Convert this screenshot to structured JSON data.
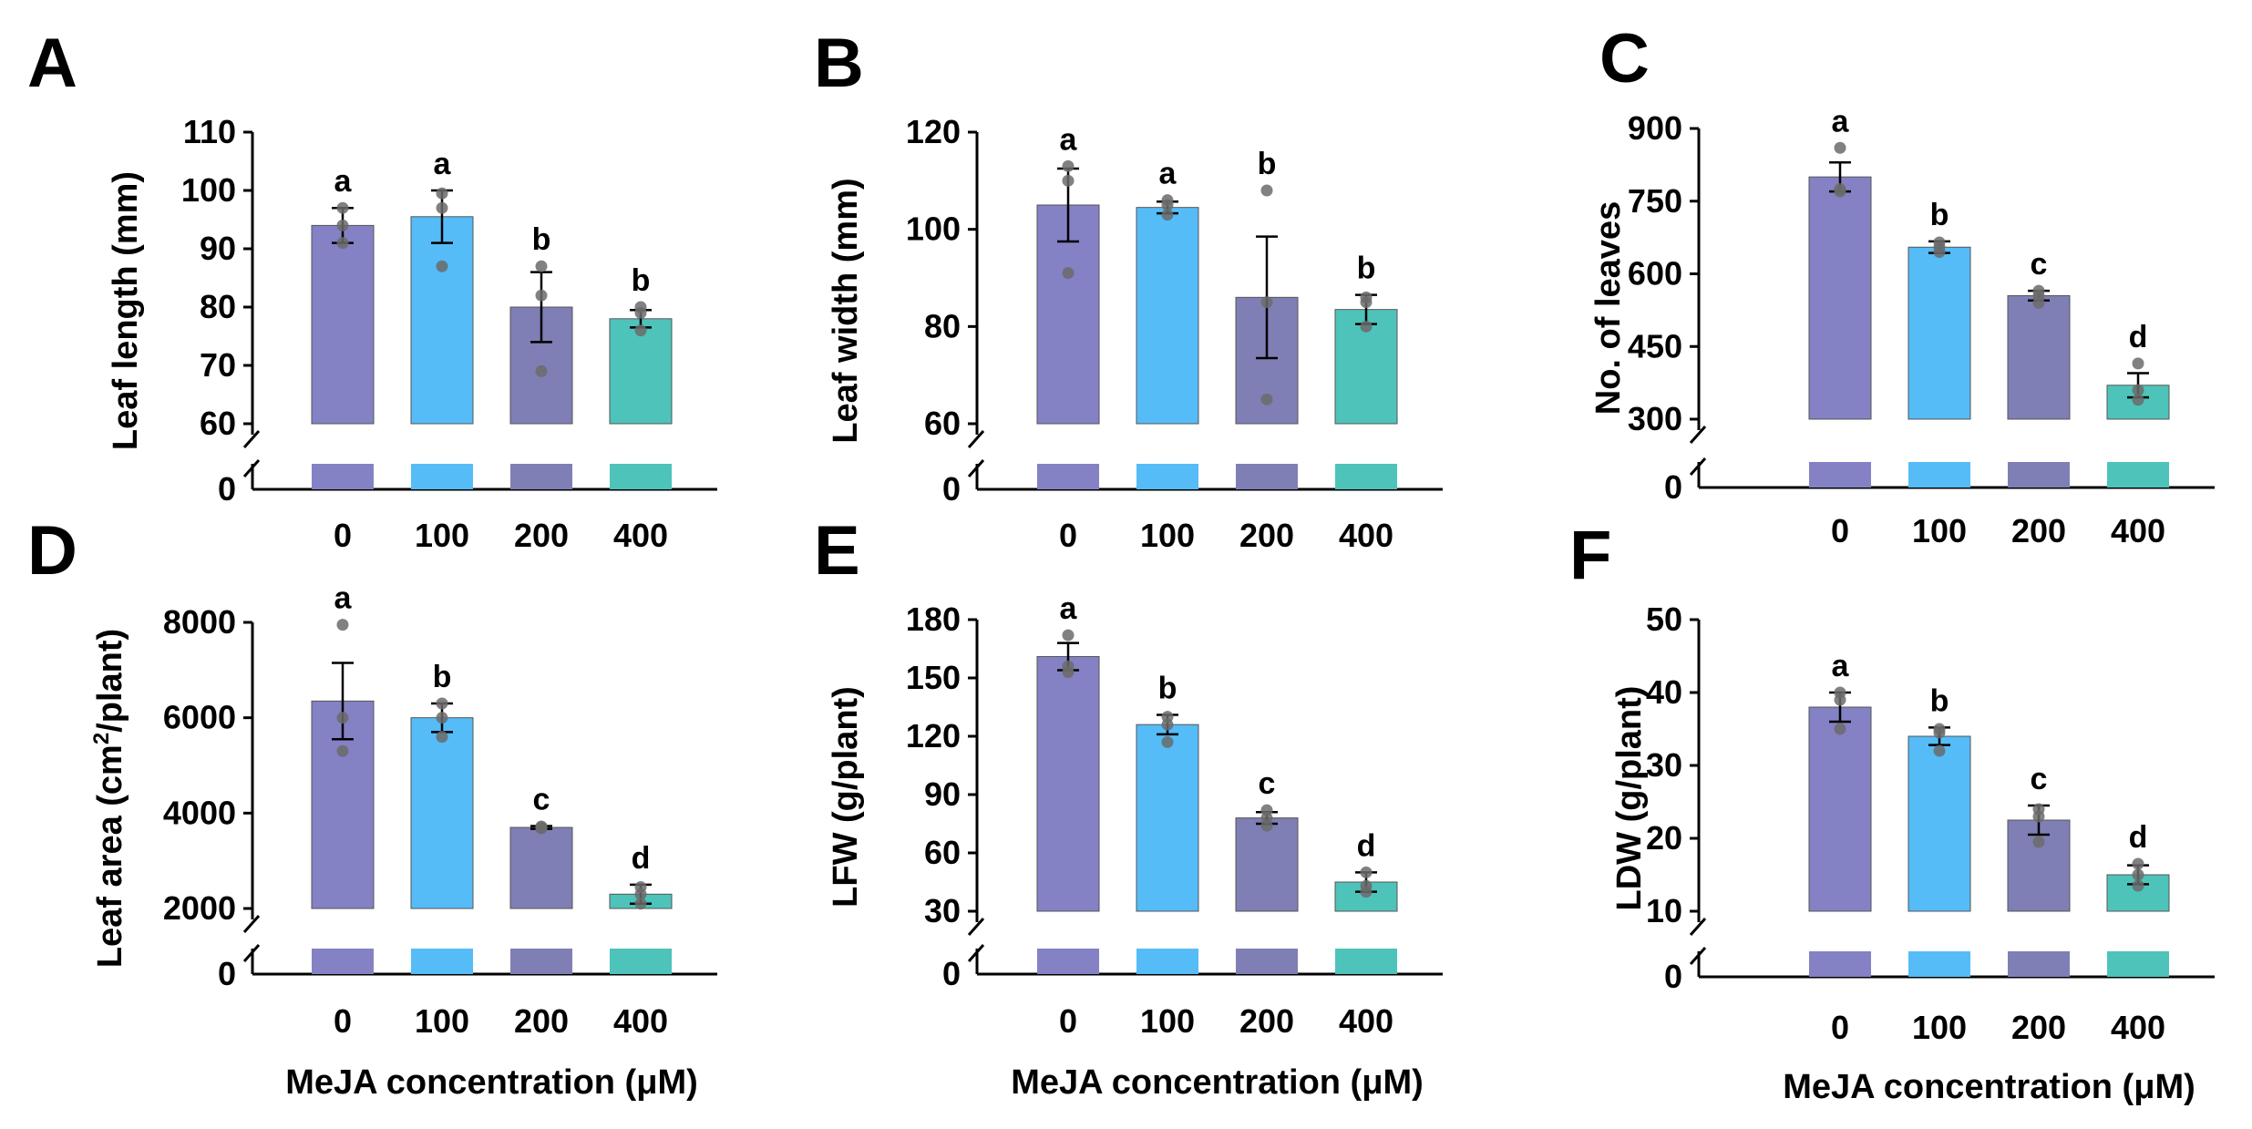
{
  "figure": {
    "x_common_label": "MeJA concentration (μM)",
    "colors": [
      "#8481C4",
      "#55BCF7",
      "#7F7FB5",
      "#4EC3BA"
    ],
    "points_color": "#6b6b6b"
  },
  "chart_data": [
    {
      "panel": "A",
      "type": "bar",
      "categories": [
        "0",
        "100",
        "200",
        "400"
      ],
      "ylabel": "Leaf length (mm)",
      "ylim": [
        60,
        110
      ],
      "yticks": [
        60,
        70,
        80,
        90,
        100,
        110
      ],
      "axis_break": true,
      "zero_label": "0",
      "values": [
        94,
        95.5,
        80,
        78
      ],
      "errors": [
        3,
        4.5,
        6,
        1.5
      ],
      "letters": [
        "a",
        "a",
        "b",
        "b"
      ],
      "points": [
        [
          91,
          94,
          97
        ],
        [
          87,
          97,
          99.5
        ],
        [
          69,
          82,
          87
        ],
        [
          76,
          79,
          80
        ]
      ]
    },
    {
      "panel": "B",
      "type": "bar",
      "categories": [
        "0",
        "100",
        "200",
        "400"
      ],
      "ylabel": "Leaf width (mm)",
      "ylim": [
        60,
        120
      ],
      "yticks": [
        60,
        80,
        100,
        120
      ],
      "axis_break": true,
      "zero_label": "0",
      "values": [
        105,
        104.5,
        86,
        83.5
      ],
      "errors": [
        7.5,
        1.2,
        12.5,
        3
      ],
      "letters": [
        "a",
        "a",
        "b",
        "b"
      ],
      "points": [
        [
          91,
          110,
          113
        ],
        [
          103,
          105,
          106
        ],
        [
          65,
          85,
          108
        ],
        [
          80,
          85,
          86
        ]
      ]
    },
    {
      "panel": "C",
      "type": "bar",
      "categories": [
        "0",
        "100",
        "200",
        "400"
      ],
      "ylabel": "No. of leaves",
      "ylim": [
        300,
        900
      ],
      "yticks": [
        300,
        450,
        600,
        750,
        900
      ],
      "axis_break": true,
      "zero_label": "0",
      "values": [
        800,
        655,
        555,
        370
      ],
      "errors": [
        30,
        12,
        10,
        25
      ],
      "letters": [
        "a",
        "b",
        "c",
        "d"
      ],
      "points": [
        [
          770,
          775,
          860
        ],
        [
          645,
          655,
          665
        ],
        [
          540,
          555,
          565
        ],
        [
          340,
          360,
          415
        ]
      ]
    },
    {
      "panel": "D",
      "type": "bar",
      "categories": [
        "0",
        "100",
        "200",
        "400"
      ],
      "ylabel": "Leaf area (cm2/plant)",
      "ylabel_main": "Leaf area (cm",
      "ylabel_sup": "2",
      "ylabel_tail": "/plant)",
      "ylim": [
        2000,
        8000
      ],
      "yticks": [
        2000,
        4000,
        6000,
        8000
      ],
      "axis_break": true,
      "zero_label": "0",
      "values": [
        6350,
        6000,
        3700,
        2300
      ],
      "errors": [
        800,
        300,
        30,
        200
      ],
      "letters": [
        "a",
        "b",
        "c",
        "d"
      ],
      "points": [
        [
          5300,
          6000,
          7950
        ],
        [
          5600,
          6000,
          6300
        ],
        [
          3680,
          3700,
          3720
        ],
        [
          2100,
          2300,
          2450
        ]
      ]
    },
    {
      "panel": "E",
      "type": "bar",
      "categories": [
        "0",
        "100",
        "200",
        "400"
      ],
      "ylabel": "LFW (g/plant)",
      "ylim": [
        30,
        180
      ],
      "yticks": [
        30,
        60,
        90,
        120,
        150,
        180
      ],
      "axis_break": true,
      "zero_label": "0",
      "values": [
        161,
        126,
        78,
        45
      ],
      "errors": [
        7,
        5,
        3,
        5
      ],
      "letters": [
        "a",
        "b",
        "c",
        "d"
      ],
      "points": [
        [
          153,
          156,
          172
        ],
        [
          117,
          126,
          130
        ],
        [
          74,
          78,
          82
        ],
        [
          40,
          43,
          50
        ]
      ]
    },
    {
      "panel": "F",
      "type": "bar",
      "categories": [
        "0",
        "100",
        "200",
        "400"
      ],
      "ylabel": "LDW (g/plant)",
      "ylim": [
        10,
        50
      ],
      "yticks": [
        10,
        20,
        30,
        40,
        50
      ],
      "axis_break": true,
      "zero_label": "0",
      "values": [
        38,
        34,
        22.5,
        15
      ],
      "errors": [
        2,
        1.2,
        2,
        1.3
      ],
      "letters": [
        "a",
        "b",
        "c",
        "d"
      ],
      "points": [
        [
          35,
          39,
          40
        ],
        [
          32,
          34.5,
          35
        ],
        [
          19.5,
          23,
          24
        ],
        [
          13.5,
          15,
          16.5
        ]
      ]
    }
  ]
}
